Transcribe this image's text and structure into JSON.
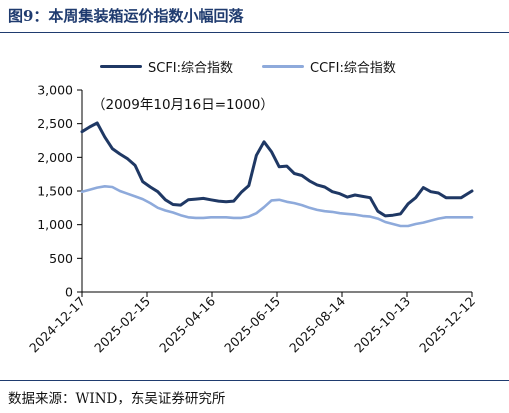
{
  "figure": {
    "title": "图9：本周集装箱运价指数小幅回落",
    "note": "（2009年10月16日=1000）",
    "source": "数据来源：WIND，东吴证券研究所"
  },
  "chart_data": {
    "type": "line",
    "title": "",
    "xlabel": "",
    "ylabel": "",
    "ylim": [
      0,
      3000
    ],
    "yticks": [
      "0",
      "500",
      "1,000",
      "1,500",
      "2,000",
      "2,500",
      "3,000"
    ],
    "ytick_values": [
      0,
      500,
      1000,
      1500,
      2000,
      2500,
      3000
    ],
    "xticks": [
      "2024-12-17",
      "2025-02-15",
      "2025-04-16",
      "2025-06-15",
      "2025-08-14",
      "2025-10-13",
      "2025-12-12"
    ],
    "x_range": [
      "2024-12-17",
      "2025-12-12"
    ],
    "grid": false,
    "legend_position": "top",
    "series": [
      {
        "name": "SCFI:综合指数",
        "color": "#1f3864",
        "points": [
          [
            "2024-12-17",
            2380
          ],
          [
            "2024-12-24",
            2450
          ],
          [
            "2024-12-31",
            2510
          ],
          [
            "2025-01-07",
            2300
          ],
          [
            "2025-01-14",
            2130
          ],
          [
            "2025-01-21",
            2050
          ],
          [
            "2025-01-28",
            1980
          ],
          [
            "2025-02-04",
            1880
          ],
          [
            "2025-02-11",
            1640
          ],
          [
            "2025-02-18",
            1560
          ],
          [
            "2025-02-25",
            1490
          ],
          [
            "2025-03-04",
            1370
          ],
          [
            "2025-03-11",
            1300
          ],
          [
            "2025-03-18",
            1290
          ],
          [
            "2025-03-25",
            1370
          ],
          [
            "2025-04-01",
            1380
          ],
          [
            "2025-04-08",
            1390
          ],
          [
            "2025-04-15",
            1370
          ],
          [
            "2025-04-22",
            1350
          ],
          [
            "2025-04-29",
            1340
          ],
          [
            "2025-05-06",
            1350
          ],
          [
            "2025-05-13",
            1480
          ],
          [
            "2025-05-20",
            1580
          ],
          [
            "2025-05-27",
            2030
          ],
          [
            "2025-06-03",
            2230
          ],
          [
            "2025-06-10",
            2080
          ],
          [
            "2025-06-17",
            1860
          ],
          [
            "2025-06-24",
            1870
          ],
          [
            "2025-07-01",
            1760
          ],
          [
            "2025-07-08",
            1730
          ],
          [
            "2025-07-15",
            1650
          ],
          [
            "2025-07-22",
            1590
          ],
          [
            "2025-07-29",
            1560
          ],
          [
            "2025-08-05",
            1490
          ],
          [
            "2025-08-12",
            1460
          ],
          [
            "2025-08-19",
            1410
          ],
          [
            "2025-08-26",
            1440
          ],
          [
            "2025-09-02",
            1420
          ],
          [
            "2025-09-09",
            1400
          ],
          [
            "2025-09-16",
            1200
          ],
          [
            "2025-09-23",
            1130
          ],
          [
            "2025-09-30",
            1140
          ],
          [
            "2025-10-07",
            1160
          ],
          [
            "2025-10-14",
            1310
          ],
          [
            "2025-10-21",
            1400
          ],
          [
            "2025-10-28",
            1550
          ],
          [
            "2025-11-04",
            1490
          ],
          [
            "2025-11-11",
            1470
          ],
          [
            "2025-11-18",
            1400
          ],
          [
            "2025-11-25",
            1400
          ],
          [
            "2025-12-02",
            1400
          ],
          [
            "2025-12-12",
            1500
          ]
        ]
      },
      {
        "name": "CCFI:综合指数",
        "color": "#8eaadb",
        "points": [
          [
            "2024-12-17",
            1490
          ],
          [
            "2024-12-24",
            1520
          ],
          [
            "2024-12-31",
            1550
          ],
          [
            "2025-01-07",
            1570
          ],
          [
            "2025-01-14",
            1560
          ],
          [
            "2025-01-21",
            1500
          ],
          [
            "2025-01-28",
            1460
          ],
          [
            "2025-02-04",
            1420
          ],
          [
            "2025-02-11",
            1380
          ],
          [
            "2025-02-18",
            1320
          ],
          [
            "2025-02-25",
            1250
          ],
          [
            "2025-03-04",
            1210
          ],
          [
            "2025-03-11",
            1180
          ],
          [
            "2025-03-18",
            1140
          ],
          [
            "2025-03-25",
            1110
          ],
          [
            "2025-04-01",
            1100
          ],
          [
            "2025-04-08",
            1100
          ],
          [
            "2025-04-15",
            1110
          ],
          [
            "2025-04-22",
            1110
          ],
          [
            "2025-04-29",
            1110
          ],
          [
            "2025-05-06",
            1100
          ],
          [
            "2025-05-13",
            1100
          ],
          [
            "2025-05-20",
            1120
          ],
          [
            "2025-05-27",
            1170
          ],
          [
            "2025-06-03",
            1260
          ],
          [
            "2025-06-10",
            1360
          ],
          [
            "2025-06-17",
            1370
          ],
          [
            "2025-06-24",
            1340
          ],
          [
            "2025-07-01",
            1320
          ],
          [
            "2025-07-08",
            1290
          ],
          [
            "2025-07-15",
            1250
          ],
          [
            "2025-07-22",
            1220
          ],
          [
            "2025-07-29",
            1200
          ],
          [
            "2025-08-05",
            1190
          ],
          [
            "2025-08-12",
            1170
          ],
          [
            "2025-08-19",
            1160
          ],
          [
            "2025-08-26",
            1150
          ],
          [
            "2025-09-02",
            1130
          ],
          [
            "2025-09-09",
            1120
          ],
          [
            "2025-09-16",
            1090
          ],
          [
            "2025-09-23",
            1040
          ],
          [
            "2025-09-30",
            1010
          ],
          [
            "2025-10-07",
            980
          ],
          [
            "2025-10-14",
            980
          ],
          [
            "2025-10-21",
            1010
          ],
          [
            "2025-10-28",
            1030
          ],
          [
            "2025-11-04",
            1060
          ],
          [
            "2025-11-11",
            1090
          ],
          [
            "2025-11-18",
            1110
          ],
          [
            "2025-11-25",
            1110
          ],
          [
            "2025-12-02",
            1110
          ],
          [
            "2025-12-12",
            1110
          ]
        ]
      }
    ]
  }
}
